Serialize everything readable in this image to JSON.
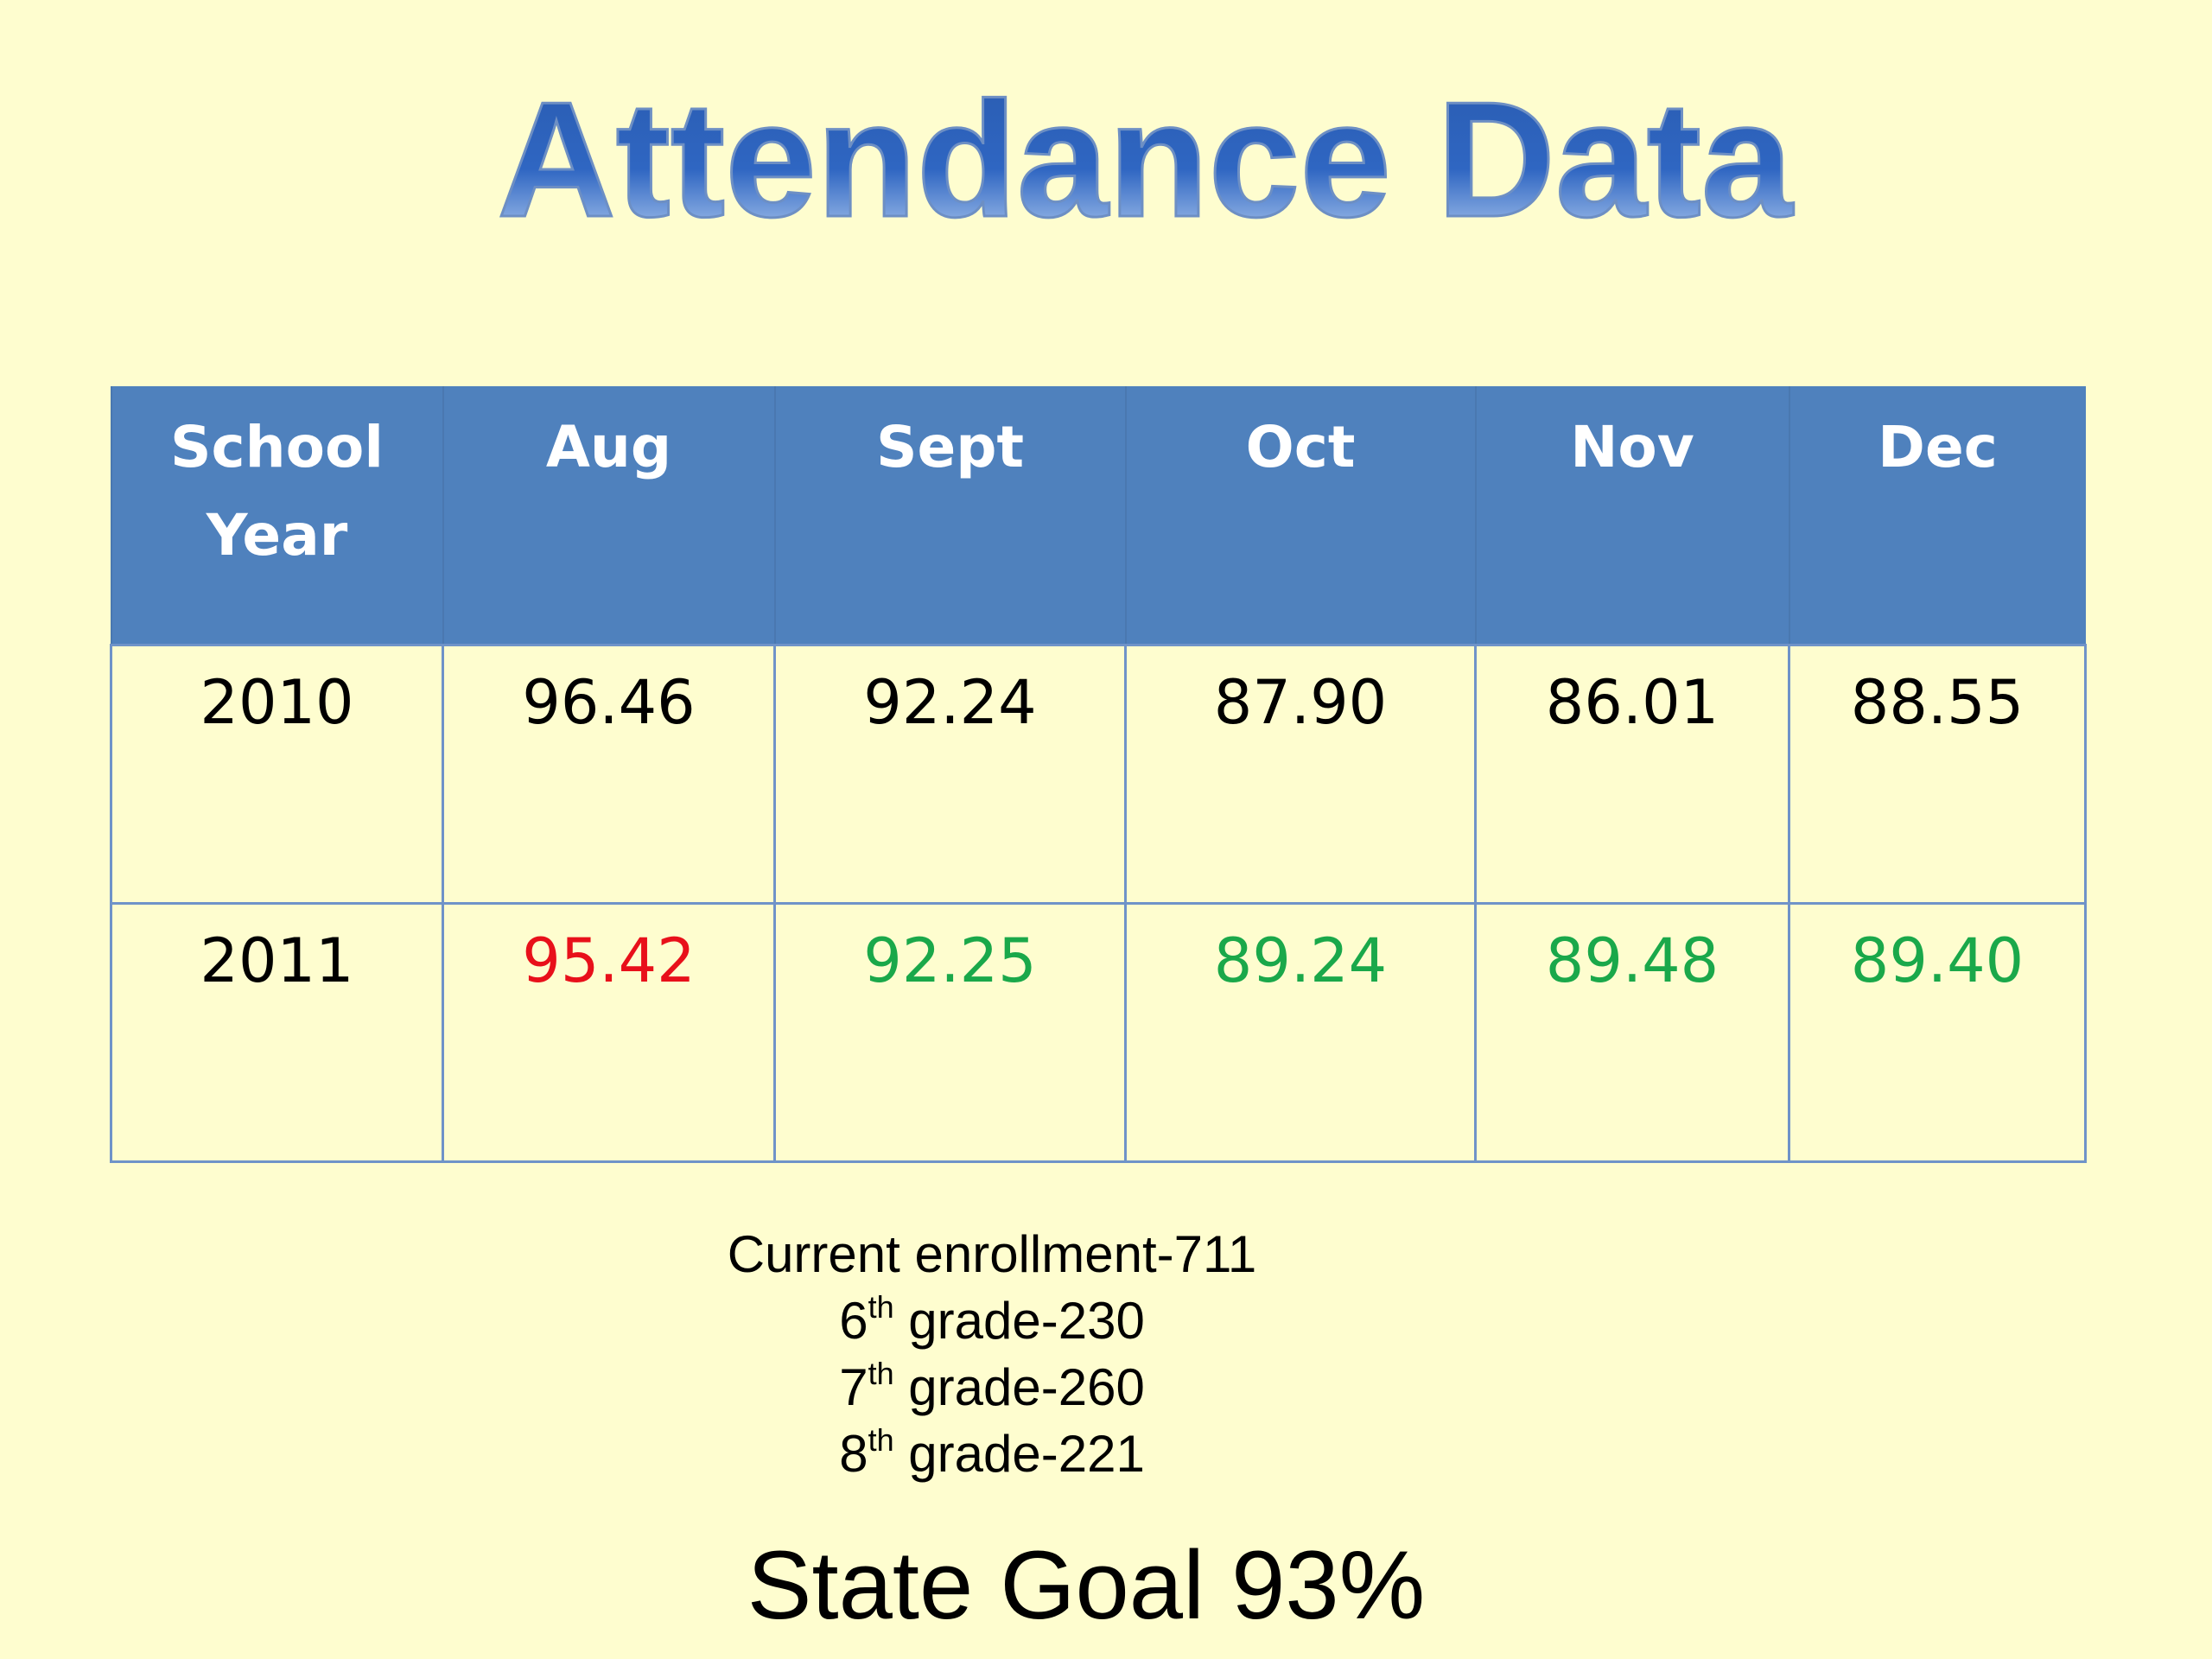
{
  "title": "Attendance Data",
  "table": {
    "header": [
      "School Year",
      "Aug",
      "Sept",
      "Oct",
      "Nov",
      "Dec"
    ],
    "rows": [
      [
        "2010",
        "96.46",
        "92.24",
        "87.90",
        "86.01",
        "88.55"
      ],
      [
        "2011",
        "95.42",
        "92.25",
        "89.24",
        "89.48",
        "89.40"
      ]
    ]
  },
  "enrollment": [
    {
      "text": "Current enrollment-711"
    },
    {
      "number": "6",
      "suffix": "th",
      "text": " grade-230"
    },
    {
      "number": "7",
      "suffix": "th",
      "text": " grade-260"
    },
    {
      "number": "8",
      "suffix": "th",
      "text": " grade-221"
    }
  ],
  "state_goal": "State Goal 93%"
}
